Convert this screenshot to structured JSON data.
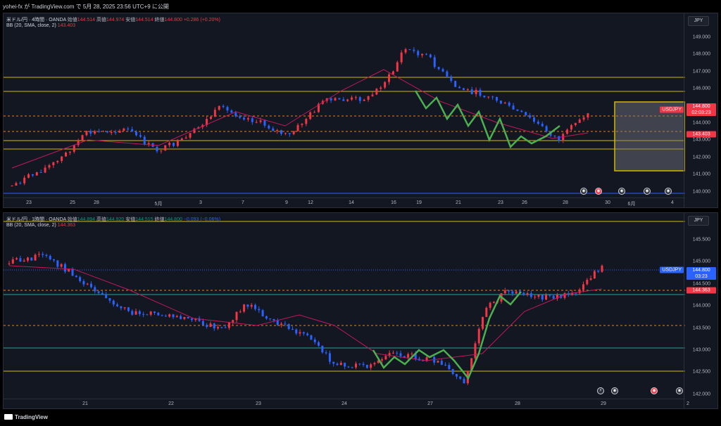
{
  "header": {
    "publish_text": "yohei-fx が TradingView.com で 5月 28, 2025 23:56 UTC+9 に公開"
  },
  "pane1": {
    "symbol_line": "米ドル/円 · 4時間 · OANDA",
    "ohlc": [
      {
        "label": "始値",
        "value": "144.514"
      },
      {
        "label": "高値",
        "value": "144.974"
      },
      {
        "label": "安値",
        "value": "144.514"
      },
      {
        "label": "終値",
        "value": "144.800"
      }
    ],
    "change": "+0.286 (+0.20%)",
    "bb_label": "BB (20, SMA, close, 2)",
    "bb_value": "143.403",
    "currency": "JPY",
    "price_labels": [
      "149.000",
      "148.000",
      "147.000",
      "146.000",
      "145.000",
      "144.000",
      "143.000",
      "142.000",
      "141.000",
      "140.000"
    ],
    "symbol_tag": "USDJPY",
    "price_tag": "144.800",
    "countdown": "02:03:23",
    "bb_tag": "143.403",
    "time_labels": [
      "23",
      "25",
      "28",
      "5月",
      "3",
      "7",
      "9",
      "12",
      "14",
      "16",
      "19",
      "21",
      "23",
      "26",
      "28",
      "30",
      "6月",
      "4"
    ],
    "colors": {
      "up": "#f23645",
      "down": "#2962ff",
      "ma": "#c2185b",
      "level": "#d4b800",
      "wave": "#4caf50"
    }
  },
  "pane2": {
    "symbol_line": "米ドル/円 · 1時間 · OANDA",
    "ohlc": [
      {
        "label": "始値",
        "value": "144.894"
      },
      {
        "label": "高値",
        "value": "144.920"
      },
      {
        "label": "安値",
        "value": "144.515"
      },
      {
        "label": "終値",
        "value": "144.800"
      }
    ],
    "change": "−0.093 (−0.06%)",
    "bb_label": "BB (20, SMA, close, 2)",
    "bb_value": "144.363",
    "currency": "JPY",
    "price_labels": [
      "145.500",
      "145.000",
      "144.500",
      "144.000",
      "143.500",
      "143.000",
      "142.500",
      "142.000"
    ],
    "symbol_tag": "USDJPY",
    "price_tag": "144.800",
    "countdown": "03:23",
    "bb_tag": "144.363",
    "time_labels": [
      "21",
      "22",
      "23",
      "24",
      "27",
      "28",
      "29",
      "2"
    ]
  },
  "footer": {
    "brand": "TradingView"
  }
}
